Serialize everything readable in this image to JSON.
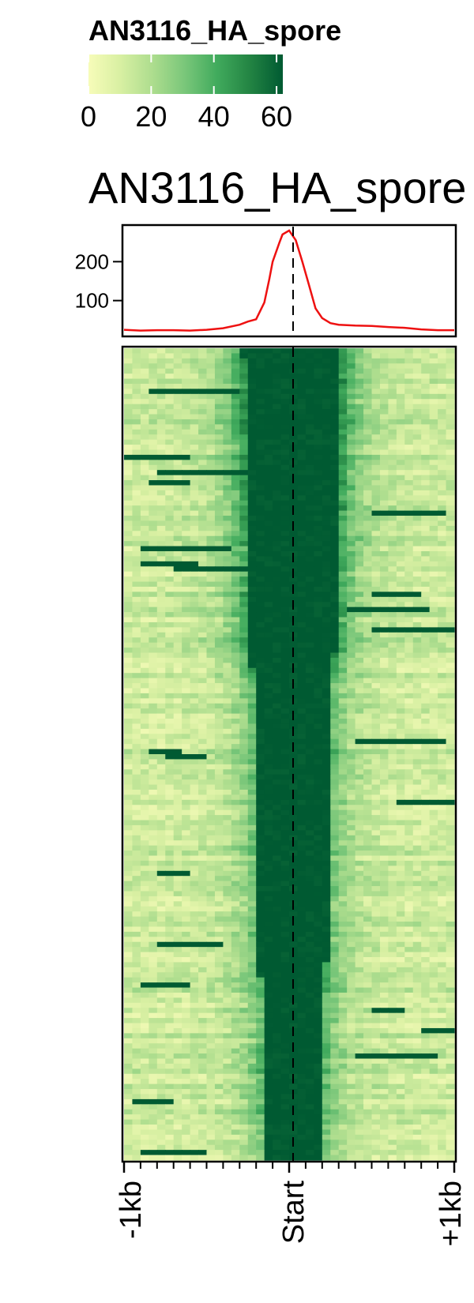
{
  "chart_data": {
    "type": "heatmap",
    "title": "AN3116_HA_spore",
    "colorbar": {
      "title": "AN3116_HA_spore",
      "ticks": [
        0,
        20,
        40,
        60
      ],
      "range": [
        0,
        62
      ],
      "colors": [
        "#f7fcb9",
        "#d9f0a3",
        "#addd8e",
        "#78c679",
        "#41ab5d",
        "#238443",
        "#005a32"
      ]
    },
    "profile": {
      "color": "#ee1111",
      "y_ticks": [
        100,
        200
      ],
      "ylim": [
        12,
        290
      ],
      "x": [
        -1000,
        -900,
        -800,
        -700,
        -600,
        -500,
        -400,
        -300,
        -250,
        -200,
        -150,
        -120,
        -100,
        -60,
        -40,
        0,
        40,
        80,
        120,
        160,
        200,
        250,
        300,
        400,
        500,
        600,
        700,
        800,
        900,
        1000
      ],
      "values": [
        25,
        23,
        24,
        24,
        23,
        25,
        29,
        38,
        46,
        52,
        95,
        155,
        200,
        248,
        270,
        280,
        255,
        200,
        140,
        80,
        55,
        42,
        38,
        36,
        35,
        32,
        30,
        26,
        24,
        24
      ]
    },
    "x_ticks": [
      "-1kb",
      "Start",
      "+1kb"
    ],
    "xlim": [
      -1000,
      1000
    ],
    "heatmap_rows": 160,
    "heatmap_bins": 40,
    "center_line": "dashed"
  }
}
